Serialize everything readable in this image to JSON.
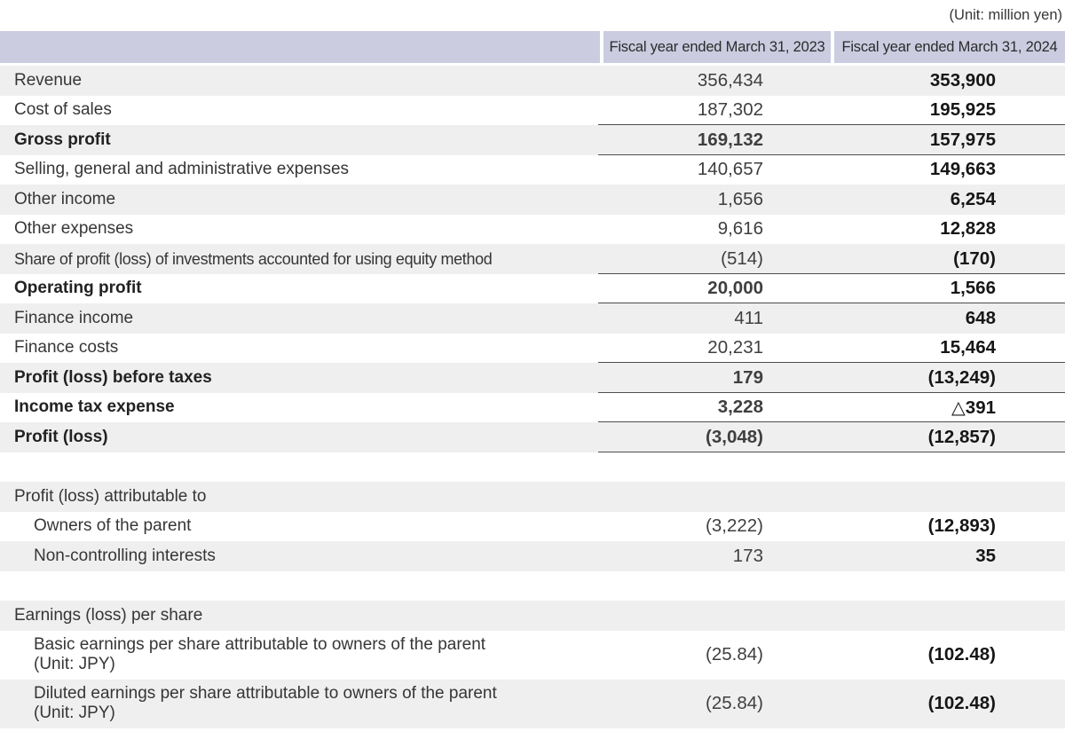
{
  "unit_note": "(Unit: million yen)",
  "colors": {
    "header_bg": "#cbcce0",
    "stripe_bg": "#efefef",
    "rule": "#4d4d4d",
    "text": "#363636"
  },
  "table": {
    "columns": [
      "Fiscal year ended March 31, 2023",
      "Fiscal year ended March 31, 2024"
    ],
    "rows": [
      {
        "label": "Revenue",
        "v2023": "356,434",
        "v2024": "353,900",
        "shade": true
      },
      {
        "label": "Cost of sales",
        "v2023": "187,302",
        "v2024": "195,925"
      },
      {
        "label": "Gross profit",
        "bold": true,
        "v2023": "169,132",
        "v2024": "157,975",
        "shade": true,
        "rule_top": true
      },
      {
        "label": "Selling, general and administrative expenses",
        "v2023": "140,657",
        "v2024": "149,663",
        "rule_top": true
      },
      {
        "label": "Other income",
        "v2023": "1,656",
        "v2024": "6,254",
        "shade": true
      },
      {
        "label": "Other expenses",
        "v2023": "9,616",
        "v2024": "12,828"
      },
      {
        "label": "Share of profit (loss) of investments accounted for using equity method",
        "condensed": true,
        "v2023": "(514)",
        "v2024": "(170)",
        "shade": true
      },
      {
        "label": "Operating profit",
        "bold": true,
        "v2023": "20,000",
        "v2024": "1,566",
        "rule_top": true
      },
      {
        "label": "Finance income",
        "v2023": "411",
        "v2024": "648",
        "shade": true,
        "rule_top": true
      },
      {
        "label": "Finance costs",
        "v2023": "20,231",
        "v2024": "15,464"
      },
      {
        "label": "Profit (loss) before taxes",
        "bold": true,
        "v2023": "179",
        "v2024": "(13,249)",
        "shade": true,
        "rule_top": true
      },
      {
        "label": "Income tax expense",
        "bold": true,
        "v2023": "3,228",
        "v2024": "△391",
        "rule_top": true
      },
      {
        "label": "Profit (loss)",
        "bold": true,
        "v2023": "(3,048)",
        "v2024": "(12,857)",
        "shade": true,
        "rule_top": true,
        "rule_bottom": true
      },
      {
        "blank": true
      },
      {
        "label": "Profit (loss) attributable to",
        "shade": true
      },
      {
        "label": "Owners of the parent",
        "indent": true,
        "v2023": "(3,222)",
        "v2024": "(12,893)"
      },
      {
        "label": "Non-controlling interests",
        "indent": true,
        "v2023": "173",
        "v2024": "35",
        "shade": true
      },
      {
        "blank": true
      },
      {
        "label": "Earnings (loss) per share",
        "shade": true
      },
      {
        "label": "Basic earnings per share attributable to owners of the parent",
        "label2": "(Unit: JPY)",
        "indent": true,
        "tall": true,
        "v2023": "(25.84)",
        "v2024": "(102.48)"
      },
      {
        "label": "Diluted earnings per share attributable to owners of the parent",
        "label2": "(Unit: JPY)",
        "indent": true,
        "tall": true,
        "v2023": "(25.84)",
        "v2024": "(102.48)",
        "shade": true
      }
    ]
  }
}
